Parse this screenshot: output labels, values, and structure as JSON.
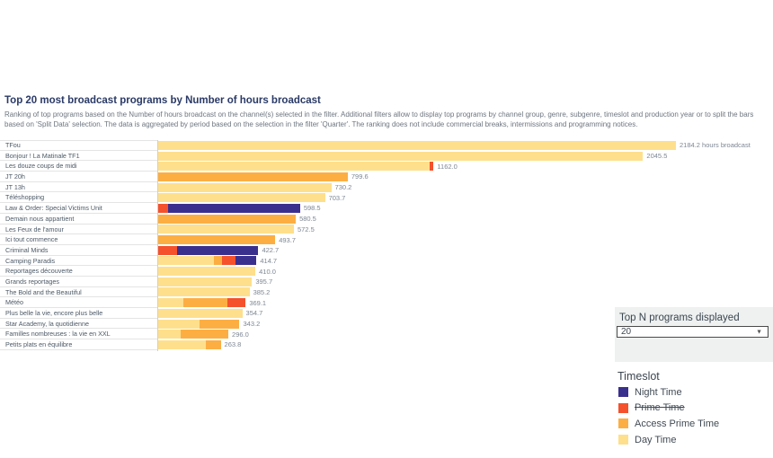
{
  "title": "Top 20 most broadcast programs by Number of hours broadcast",
  "description_lines": [
    "Ranking of top programs based on the Number of hours broadcast on the channel(s) selected in the filter. Additional filters allow to display top programs by channel group, genre, subgenre, timeslot and production year or to split the bars",
    "based on 'Split Data' selection. The data is aggregated by period based on the selection in the filter 'Quarter'. The ranking does not include commercial breaks, intermissions and programming notices."
  ],
  "filter": {
    "label": "Top N programs displayed",
    "value": "20"
  },
  "legend": {
    "title": "Timeslot",
    "items": [
      {
        "label": "Night Time",
        "color": "#3b2f8e",
        "strikethrough": false
      },
      {
        "label": "Prime Time",
        "color": "#f4512c",
        "strikethrough": true
      },
      {
        "label": "Access Prime Time",
        "color": "#fcae43",
        "strikethrough": false
      },
      {
        "label": "Day Time",
        "color": "#fedf8c",
        "strikethrough": false
      }
    ]
  },
  "chart_data": {
    "type": "bar",
    "orientation": "horizontal",
    "stacked": true,
    "x_max_value": 2184.2,
    "series_order": [
      "Day Time",
      "Access Prime Time",
      "Prime Time",
      "Night Time"
    ],
    "colors": {
      "Day Time": "#fedf8c",
      "Access Prime Time": "#fcae43",
      "Prime Time": "#f4512c",
      "Night Time": "#3b2f8e"
    },
    "rows": [
      {
        "label": "TFou",
        "total": 2184.2,
        "value_label": "2184.2 hours broadcast",
        "segments": [
          [
            "Day Time",
            2184.2
          ]
        ]
      },
      {
        "label": "Bonjour ! La Matinale TF1",
        "total": 2045.5,
        "value_label": "2045.5",
        "segments": [
          [
            "Day Time",
            2045.5
          ]
        ]
      },
      {
        "label": "Les douze coups de midi",
        "total": 1162.0,
        "value_label": "1162.0",
        "segments": [
          [
            "Day Time",
            1144.2
          ],
          [
            "Prime Time",
            17.8
          ]
        ]
      },
      {
        "label": "JT 20h",
        "total": 799.6,
        "value_label": "799.6",
        "segments": [
          [
            "Access Prime Time",
            799.6
          ]
        ]
      },
      {
        "label": "JT 13h",
        "total": 730.2,
        "value_label": "730.2",
        "segments": [
          [
            "Day Time",
            730.2
          ]
        ]
      },
      {
        "label": "Téléshopping",
        "total": 703.7,
        "value_label": "703.7",
        "segments": [
          [
            "Day Time",
            703.7
          ]
        ]
      },
      {
        "label": "Law & Order: Special Victims Unit",
        "total": 598.5,
        "value_label": "598.5",
        "segments": [
          [
            "Prime Time",
            41.7
          ],
          [
            "Night Time",
            556.8
          ]
        ]
      },
      {
        "label": "Demain nous appartient",
        "total": 580.5,
        "value_label": "580.5",
        "segments": [
          [
            "Access Prime Time",
            580.5
          ]
        ]
      },
      {
        "label": "Les Feux de l'amour",
        "total": 572.5,
        "value_label": "572.5",
        "segments": [
          [
            "Day Time",
            572.5
          ]
        ]
      },
      {
        "label": "Ici tout commence",
        "total": 493.7,
        "value_label": "493.7",
        "segments": [
          [
            "Access Prime Time",
            493.7
          ]
        ]
      },
      {
        "label": "Criminal Minds",
        "total": 422.7,
        "value_label": "422.7",
        "segments": [
          [
            "Prime Time",
            79.6
          ],
          [
            "Night Time",
            343.1
          ]
        ]
      },
      {
        "label": "Camping Paradis",
        "total": 414.7,
        "value_label": "414.7",
        "segments": [
          [
            "Day Time",
            234.0
          ],
          [
            "Access Prime Time",
            35.3
          ],
          [
            "Prime Time",
            55.7
          ],
          [
            "Night Time",
            89.7
          ]
        ]
      },
      {
        "label": "Reportages découverte",
        "total": 410.0,
        "value_label": "410.0",
        "segments": [
          [
            "Day Time",
            410.0
          ]
        ]
      },
      {
        "label": "Grands reportages",
        "total": 395.7,
        "value_label": "395.7",
        "segments": [
          [
            "Day Time",
            395.7
          ]
        ]
      },
      {
        "label": "The Bold and the Beautiful",
        "total": 385.2,
        "value_label": "385.2",
        "segments": [
          [
            "Day Time",
            385.2
          ]
        ]
      },
      {
        "label": "Météo",
        "total": 369.1,
        "value_label": "369.1",
        "segments": [
          [
            "Day Time",
            107.3
          ],
          [
            "Access Prime Time",
            183.5
          ],
          [
            "Prime Time",
            78.3
          ]
        ]
      },
      {
        "label": "Plus belle la vie, encore plus belle",
        "total": 354.7,
        "value_label": "354.7",
        "segments": [
          [
            "Day Time",
            354.7
          ]
        ]
      },
      {
        "label": "Star Academy, la quotidienne",
        "total": 343.2,
        "value_label": "343.2",
        "segments": [
          [
            "Day Time",
            173.3
          ],
          [
            "Access Prime Time",
            169.9
          ]
        ]
      },
      {
        "label": "Familles nombreuses : la vie en XXL",
        "total": 296.0,
        "value_label": "296.0",
        "segments": [
          [
            "Day Time",
            94.8
          ],
          [
            "Access Prime Time",
            201.2
          ]
        ]
      },
      {
        "label": "Petits plats en équilibre",
        "total": 263.8,
        "value_label": "263.8",
        "segments": [
          [
            "Day Time",
            200.0
          ],
          [
            "Access Prime Time",
            63.8
          ]
        ]
      }
    ]
  }
}
